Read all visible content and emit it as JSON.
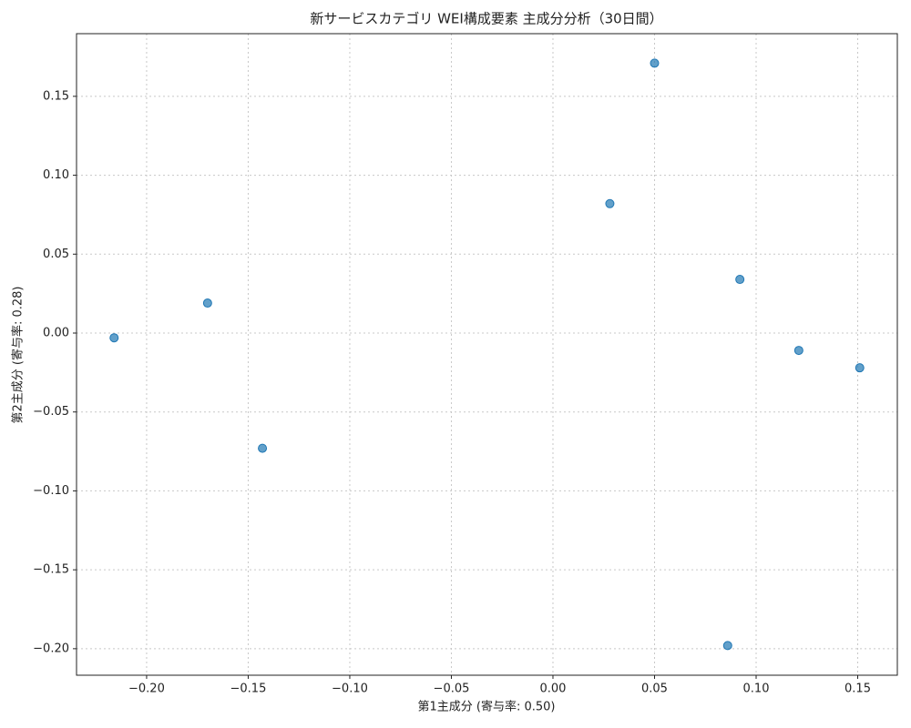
{
  "chart_data": {
    "type": "scatter",
    "title": "新サービスカテゴリ WEI構成要素 主成分分析（30日間）",
    "x_label": "第1主成分 (寄与率: 0.50)",
    "y_label": "第2主成分 (寄与率: 0.28)",
    "color": "#1f77b4",
    "grid": true,
    "x": [
      -0.216,
      -0.17,
      -0.143,
      0.028,
      0.05,
      0.092,
      0.121,
      0.151,
      0.086
    ],
    "y": [
      -0.003,
      0.019,
      -0.073,
      0.082,
      0.171,
      0.034,
      -0.011,
      -0.022,
      -0.198
    ],
    "xlim": [
      -0.2345,
      0.1695
    ],
    "ylim": [
      -0.2168,
      0.1897
    ],
    "xticks": [
      {
        "value": -0.2,
        "label": "−0.20"
      },
      {
        "value": -0.15,
        "label": "−0.15"
      },
      {
        "value": -0.1,
        "label": "−0.10"
      },
      {
        "value": -0.05,
        "label": "−0.05"
      },
      {
        "value": 0,
        "label": "0.00"
      },
      {
        "value": 0.05,
        "label": "0.05"
      },
      {
        "value": 0.1,
        "label": "0.10"
      },
      {
        "value": 0.15,
        "label": "0.15"
      }
    ],
    "yticks": [
      {
        "value": -0.2,
        "label": "−0.20"
      },
      {
        "value": -0.15,
        "label": "−0.15"
      },
      {
        "value": -0.1,
        "label": "−0.10"
      },
      {
        "value": -0.05,
        "label": "−0.05"
      },
      {
        "value": 0,
        "label": "0.00"
      },
      {
        "value": 0.05,
        "label": "0.05"
      },
      {
        "value": 0.1,
        "label": "0.10"
      },
      {
        "value": 0.15,
        "label": "0.15"
      }
    ]
  }
}
